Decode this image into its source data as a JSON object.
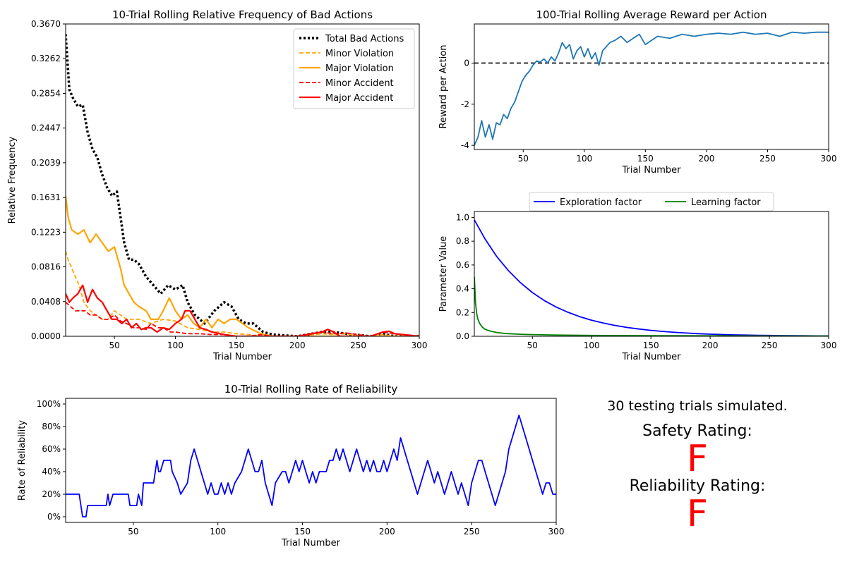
{
  "chart_data": [
    {
      "id": "bad-actions",
      "type": "line",
      "title": "10-Trial Rolling Relative Frequency of Bad Actions",
      "xlabel": "Trial Number",
      "ylabel": "Relative Frequency",
      "xlim": [
        10,
        300
      ],
      "ylim": [
        0,
        0.367
      ],
      "xticks": [
        50,
        100,
        150,
        200,
        250,
        300
      ],
      "yticks": [
        0.0,
        0.0408,
        0.0816,
        0.1223,
        0.1631,
        0.2039,
        0.2447,
        0.2854,
        0.3262,
        0.367
      ],
      "yticklabels": [
        "0.0000",
        "0.0408",
        "0.0816",
        "0.1223",
        "0.1631",
        "0.2039",
        "0.2447",
        "0.2854",
        "0.3262",
        "0.3670"
      ],
      "legend": "top-right",
      "grid": false,
      "series": [
        {
          "name": "Total Bad Actions",
          "color": "#000000",
          "style": "dotted",
          "width": 3.5,
          "x": [
            10,
            13,
            16,
            20,
            24,
            28,
            32,
            36,
            40,
            44,
            48,
            52,
            56,
            58,
            62,
            66,
            70,
            76,
            82,
            88,
            94,
            100,
            106,
            110,
            116,
            124,
            132,
            140,
            146,
            152,
            158,
            164,
            172,
            180,
            200,
            220,
            230,
            240,
            260,
            270,
            280,
            300
          ],
          "y": [
            0.355,
            0.29,
            0.28,
            0.27,
            0.272,
            0.24,
            0.22,
            0.21,
            0.19,
            0.175,
            0.165,
            0.17,
            0.13,
            0.11,
            0.09,
            0.09,
            0.085,
            0.07,
            0.06,
            0.05,
            0.06,
            0.055,
            0.06,
            0.04,
            0.025,
            0.015,
            0.03,
            0.04,
            0.035,
            0.02,
            0.015,
            0.015,
            0.005,
            0.002,
            0.0,
            0.005,
            0.005,
            0.003,
            0.0,
            0.003,
            0.0,
            0.0
          ]
        },
        {
          "name": "Minor Violation",
          "color": "#FFA500",
          "style": "dashed",
          "width": 1.8,
          "x": [
            10,
            12,
            15,
            18,
            21,
            25,
            30,
            35,
            40,
            45,
            50,
            55,
            60,
            70,
            80,
            90,
            100,
            110,
            120,
            130,
            140,
            150,
            160,
            170,
            180,
            200,
            220,
            230,
            240,
            250,
            260,
            270,
            280,
            300
          ],
          "y": [
            0.1,
            0.09,
            0.08,
            0.07,
            0.06,
            0.04,
            0.03,
            0.025,
            0.02,
            0.02,
            0.03,
            0.025,
            0.02,
            0.02,
            0.015,
            0.02,
            0.018,
            0.01,
            0.008,
            0.005,
            0.005,
            0.003,
            0.002,
            0.0,
            0.0,
            0.0,
            0.003,
            0.002,
            0.003,
            0.001,
            0.0,
            0.002,
            0.0,
            0.0
          ]
        },
        {
          "name": "Major Violation",
          "color": "#FFA500",
          "style": "solid",
          "width": 2.2,
          "x": [
            10,
            12,
            15,
            20,
            25,
            30,
            35,
            40,
            45,
            50,
            55,
            58,
            62,
            66,
            70,
            76,
            80,
            86,
            90,
            95,
            100,
            105,
            110,
            115,
            120,
            125,
            130,
            135,
            140,
            145,
            150,
            155,
            160,
            170,
            180,
            200,
            300
          ],
          "y": [
            0.165,
            0.14,
            0.125,
            0.12,
            0.125,
            0.11,
            0.12,
            0.11,
            0.1,
            0.105,
            0.08,
            0.06,
            0.05,
            0.04,
            0.035,
            0.03,
            0.02,
            0.02,
            0.03,
            0.045,
            0.03,
            0.02,
            0.025,
            0.015,
            0.01,
            0.02,
            0.01,
            0.02,
            0.015,
            0.02,
            0.02,
            0.015,
            0.01,
            0.003,
            0.0,
            0.0,
            0.0
          ]
        },
        {
          "name": "Minor Accident",
          "color": "#FF0000",
          "style": "dashed",
          "width": 1.8,
          "x": [
            10,
            14,
            18,
            22,
            26,
            30,
            35,
            40,
            45,
            50,
            55,
            60,
            66,
            70,
            76,
            80,
            86,
            90,
            96,
            100,
            110,
            120,
            130,
            140,
            150,
            160,
            170,
            180,
            200,
            210,
            220,
            230,
            240,
            250,
            260,
            270,
            280,
            300
          ],
          "y": [
            0.04,
            0.035,
            0.03,
            0.03,
            0.03,
            0.025,
            0.025,
            0.02,
            0.02,
            0.025,
            0.018,
            0.015,
            0.01,
            0.01,
            0.008,
            0.015,
            0.01,
            0.01,
            0.005,
            0.005,
            0.003,
            0.003,
            0.002,
            0.002,
            0.0,
            0.0,
            0.002,
            0.0,
            0.0,
            0.003,
            0.005,
            0.003,
            0.004,
            0.002,
            0.0,
            0.005,
            0.003,
            0.0
          ]
        },
        {
          "name": "Major Accident",
          "color": "#FF0000",
          "style": "solid",
          "width": 2.2,
          "x": [
            10,
            13,
            16,
            20,
            24,
            28,
            32,
            36,
            40,
            44,
            48,
            52,
            56,
            60,
            64,
            68,
            72,
            76,
            80,
            85,
            90,
            95,
            100,
            105,
            108,
            112,
            116,
            120,
            125,
            130,
            140,
            150,
            160,
            200,
            220,
            225,
            230,
            235,
            240,
            260,
            270,
            275,
            280,
            300
          ],
          "y": [
            0.05,
            0.04,
            0.045,
            0.05,
            0.06,
            0.04,
            0.055,
            0.045,
            0.04,
            0.03,
            0.02,
            0.02,
            0.015,
            0.02,
            0.01,
            0.015,
            0.008,
            0.01,
            0.01,
            0.005,
            0.01,
            0.008,
            0.015,
            0.02,
            0.03,
            0.03,
            0.02,
            0.01,
            0.008,
            0.005,
            0.002,
            0.0,
            0.0,
            0.0,
            0.005,
            0.008,
            0.005,
            0.0,
            0.0,
            0.0,
            0.005,
            0.006,
            0.003,
            0.0
          ]
        }
      ]
    },
    {
      "id": "reward",
      "type": "line",
      "title": "100-Trial Rolling Average Reward per Action",
      "xlabel": "Trial Number",
      "ylabel": "Reward per Action",
      "xlim": [
        10,
        300
      ],
      "ylim": [
        -4.2,
        1.9
      ],
      "xticks": [
        50,
        100,
        150,
        200,
        250,
        300
      ],
      "yticks": [
        -4,
        -2,
        0
      ],
      "grid": false,
      "zero_line": true,
      "series": [
        {
          "name": "",
          "color": "#1f77b4",
          "style": "solid",
          "width": 1.8,
          "x": [
            10,
            13,
            16,
            19,
            22,
            25,
            28,
            31,
            34,
            37,
            40,
            43,
            46,
            49,
            52,
            55,
            58,
            61,
            64,
            67,
            70,
            73,
            76,
            79,
            82,
            85,
            88,
            91,
            94,
            97,
            100,
            103,
            106,
            109,
            112,
            115,
            118,
            121,
            125,
            130,
            135,
            140,
            145,
            150,
            155,
            160,
            170,
            180,
            190,
            200,
            210,
            220,
            230,
            240,
            250,
            260,
            265,
            270,
            280,
            290,
            300
          ],
          "y": [
            -4.0,
            -3.6,
            -2.8,
            -3.6,
            -3.0,
            -3.7,
            -2.9,
            -3.0,
            -2.5,
            -2.7,
            -2.2,
            -1.9,
            -1.4,
            -0.9,
            -0.6,
            -0.4,
            -0.1,
            0.1,
            0.05,
            0.2,
            0.0,
            0.3,
            0.1,
            0.5,
            1.0,
            0.7,
            0.9,
            0.2,
            0.6,
            0.8,
            0.3,
            0.7,
            0.2,
            0.5,
            -0.1,
            0.6,
            0.8,
            1.0,
            1.1,
            1.3,
            1.0,
            1.2,
            1.4,
            0.9,
            1.1,
            1.3,
            1.2,
            1.4,
            1.3,
            1.4,
            1.45,
            1.4,
            1.5,
            1.4,
            1.45,
            1.3,
            1.4,
            1.5,
            1.45,
            1.5,
            1.5
          ]
        }
      ]
    },
    {
      "id": "parameters",
      "type": "line",
      "title": "",
      "xlabel": "Trial Number",
      "ylabel": "Parameter Value",
      "xlim": [
        1,
        300
      ],
      "ylim": [
        0,
        1.05
      ],
      "xticks": [
        50,
        100,
        150,
        200,
        250,
        300
      ],
      "yticks": [
        0.0,
        0.2,
        0.4,
        0.6,
        0.8,
        1.0
      ],
      "yticklabels": [
        "0.0",
        "0.2",
        "0.4",
        "0.6",
        "0.8",
        "1.0"
      ],
      "legend": "top-outside",
      "grid": false,
      "series": [
        {
          "name": "Exploration factor",
          "color": "#0000FF",
          "style": "solid",
          "width": 1.8,
          "x": [
            1,
            10,
            20,
            30,
            40,
            50,
            60,
            70,
            80,
            90,
            100,
            110,
            120,
            130,
            140,
            150,
            160,
            170,
            180,
            190,
            200,
            210,
            220,
            230,
            240,
            250,
            260,
            270,
            280,
            290,
            300
          ],
          "y": [
            0.98,
            0.82,
            0.67,
            0.55,
            0.45,
            0.368,
            0.301,
            0.247,
            0.202,
            0.165,
            0.135,
            0.111,
            0.091,
            0.074,
            0.061,
            0.05,
            0.041,
            0.033,
            0.027,
            0.022,
            0.018,
            0.015,
            0.012,
            0.01,
            0.008,
            0.007,
            0.006,
            0.005,
            0.004,
            0.003,
            0.003
          ]
        },
        {
          "name": "Learning factor",
          "color": "#008000",
          "style": "solid",
          "width": 1.8,
          "x": [
            1,
            2,
            3,
            4,
            5,
            6,
            8,
            10,
            13,
            16,
            20,
            25,
            30,
            40,
            50,
            70,
            100,
            150,
            200,
            250,
            300
          ],
          "y": [
            0.5,
            0.28,
            0.19,
            0.145,
            0.12,
            0.1,
            0.075,
            0.06,
            0.048,
            0.04,
            0.032,
            0.026,
            0.022,
            0.017,
            0.014,
            0.01,
            0.007,
            0.005,
            0.004,
            0.003,
            0.002
          ]
        }
      ]
    },
    {
      "id": "reliability",
      "type": "line",
      "title": "10-Trial Rolling Rate of Reliability",
      "xlabel": "Trial Number",
      "ylabel": "Rate of Reliability",
      "xlim": [
        10,
        300
      ],
      "ylim": [
        -0.05,
        1.05
      ],
      "xticks": [
        50,
        100,
        150,
        200,
        250,
        300
      ],
      "yticks": [
        0,
        0.2,
        0.4,
        0.6,
        0.8,
        1.0
      ],
      "yticklabels": [
        "0%",
        "20%",
        "40%",
        "60%",
        "80%",
        "100%"
      ],
      "grid": false,
      "series": [
        {
          "name": "",
          "color": "#0000FF",
          "style": "solid",
          "width": 1.8,
          "x": [
            10,
            11,
            18,
            19,
            20,
            22,
            23,
            34,
            35,
            36,
            38,
            47,
            48,
            52,
            53,
            55,
            56,
            62,
            63,
            64,
            65,
            66,
            68,
            72,
            73,
            76,
            78,
            82,
            84,
            86,
            88,
            90,
            92,
            94,
            96,
            98,
            100,
            102,
            104,
            106,
            108,
            110,
            114,
            116,
            118,
            120,
            122,
            124,
            126,
            128,
            130,
            132,
            134,
            138,
            140,
            142,
            144,
            146,
            148,
            150,
            152,
            154,
            156,
            158,
            160,
            162,
            164,
            166,
            168,
            170,
            172,
            174,
            176,
            178,
            180,
            182,
            184,
            186,
            188,
            190,
            192,
            194,
            196,
            198,
            200,
            202,
            204,
            206,
            208,
            210,
            212,
            214,
            216,
            218,
            220,
            222,
            224,
            226,
            228,
            230,
            232,
            234,
            236,
            238,
            240,
            242,
            244,
            246,
            248,
            250,
            252,
            254,
            256,
            258,
            260,
            262,
            264,
            266,
            268,
            270,
            272,
            274,
            276,
            278,
            280,
            282,
            284,
            286,
            288,
            290,
            292,
            294,
            296,
            298,
            300
          ],
          "y": [
            0.2,
            0.2,
            0.2,
            0.1,
            0.0,
            0.0,
            0.1,
            0.1,
            0.2,
            0.1,
            0.2,
            0.2,
            0.1,
            0.1,
            0.2,
            0.1,
            0.3,
            0.3,
            0.4,
            0.5,
            0.4,
            0.4,
            0.5,
            0.5,
            0.4,
            0.3,
            0.2,
            0.3,
            0.5,
            0.6,
            0.5,
            0.4,
            0.3,
            0.2,
            0.3,
            0.2,
            0.2,
            0.3,
            0.2,
            0.3,
            0.2,
            0.3,
            0.4,
            0.5,
            0.6,
            0.5,
            0.4,
            0.4,
            0.5,
            0.3,
            0.2,
            0.1,
            0.3,
            0.4,
            0.4,
            0.3,
            0.4,
            0.5,
            0.4,
            0.5,
            0.4,
            0.3,
            0.4,
            0.3,
            0.4,
            0.4,
            0.4,
            0.5,
            0.5,
            0.6,
            0.5,
            0.6,
            0.5,
            0.4,
            0.5,
            0.6,
            0.5,
            0.4,
            0.5,
            0.4,
            0.5,
            0.4,
            0.4,
            0.5,
            0.4,
            0.5,
            0.6,
            0.5,
            0.7,
            0.6,
            0.5,
            0.4,
            0.3,
            0.2,
            0.3,
            0.4,
            0.5,
            0.4,
            0.3,
            0.4,
            0.3,
            0.2,
            0.3,
            0.4,
            0.3,
            0.2,
            0.3,
            0.2,
            0.1,
            0.3,
            0.4,
            0.5,
            0.5,
            0.4,
            0.3,
            0.2,
            0.1,
            0.2,
            0.3,
            0.4,
            0.6,
            0.7,
            0.8,
            0.9,
            0.8,
            0.7,
            0.6,
            0.5,
            0.4,
            0.3,
            0.2,
            0.3,
            0.3,
            0.2,
            0.2
          ]
        }
      ]
    }
  ],
  "summary": {
    "trials_text": "30 testing trials simulated.",
    "safety_label": "Safety Rating:",
    "safety_grade": "F",
    "safety_color": "#FF0000",
    "reliability_label": "Reliability Rating:",
    "reliability_grade": "F",
    "reliability_color": "#FF0000"
  }
}
